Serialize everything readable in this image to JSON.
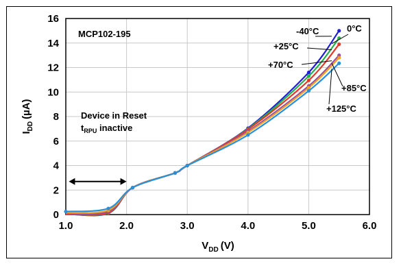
{
  "chart_data": {
    "type": "line",
    "title": "MCP102-195",
    "xlabel": "V",
    "xlabel_sub": "DD",
    "xlabel_unit": "(V)",
    "ylabel": "I",
    "ylabel_sub": "DD",
    "ylabel_unit": "(µA)",
    "xlim": [
      1.0,
      6.0
    ],
    "ylim": [
      0,
      16
    ],
    "xticks": [
      "1.0",
      "2.0",
      "3.0",
      "4.0",
      "5.0",
      "6.0"
    ],
    "yticks": [
      "0",
      "2",
      "4",
      "6",
      "8",
      "10",
      "12",
      "14",
      "16"
    ],
    "grid": true,
    "annotation": {
      "line1": "Device in Reset",
      "line2_prefix": "t",
      "line2_sub": "RPU",
      "line2_suffix": " inactive",
      "arrow_from": 1.05,
      "arrow_to": 2.0,
      "arrow_y": 2.7
    },
    "series": [
      {
        "name": "-40°C",
        "color": "#1f1fd6",
        "x": [
          1.0,
          1.7,
          2.1,
          2.8,
          3.0,
          4.0,
          5.0,
          5.5
        ],
        "y": [
          0.05,
          0.1,
          2.2,
          3.4,
          4.0,
          7.05,
          11.6,
          15.0
        ]
      },
      {
        "name": "0°C",
        "color": "#22b14c",
        "x": [
          1.0,
          1.7,
          2.1,
          2.8,
          3.0,
          4.0,
          5.0,
          5.5
        ],
        "y": [
          0.05,
          0.12,
          2.2,
          3.4,
          4.0,
          7.0,
          11.3,
          14.4
        ]
      },
      {
        "name": "+25°C",
        "color": "#e03a2a",
        "x": [
          1.0,
          1.7,
          2.1,
          2.8,
          3.0,
          4.0,
          5.0,
          5.5
        ],
        "y": [
          0.05,
          0.15,
          2.2,
          3.4,
          4.0,
          6.95,
          10.95,
          13.9
        ]
      },
      {
        "name": "+70°C",
        "color": "#9b4fa0",
        "x": [
          1.0,
          1.7,
          2.1,
          2.8,
          3.0,
          4.0,
          5.0,
          5.5
        ],
        "y": [
          0.1,
          0.25,
          2.2,
          3.4,
          4.0,
          6.8,
          10.5,
          13.0
        ]
      },
      {
        "name": "+85°C",
        "color": "#f0a020",
        "x": [
          1.0,
          1.7,
          2.1,
          2.8,
          3.0,
          4.0,
          5.0,
          5.5
        ],
        "y": [
          0.15,
          0.35,
          2.2,
          3.4,
          4.0,
          6.7,
          10.35,
          12.8
        ]
      },
      {
        "name": "+125°C",
        "color": "#2a8fd6",
        "x": [
          1.0,
          1.7,
          2.1,
          2.8,
          3.0,
          4.0,
          5.0,
          5.5
        ],
        "y": [
          0.25,
          0.5,
          2.2,
          3.4,
          4.0,
          6.5,
          10.1,
          12.35
        ]
      }
    ],
    "series_labels": [
      {
        "text": "-40°C",
        "series": 0
      },
      {
        "text": "0°C",
        "series": 1
      },
      {
        "text": "+25°C",
        "series": 2
      },
      {
        "text": "+70°C",
        "series": 3
      },
      {
        "text": "+85°C",
        "series": 4
      },
      {
        "text": "+125°C",
        "series": 5
      }
    ]
  }
}
